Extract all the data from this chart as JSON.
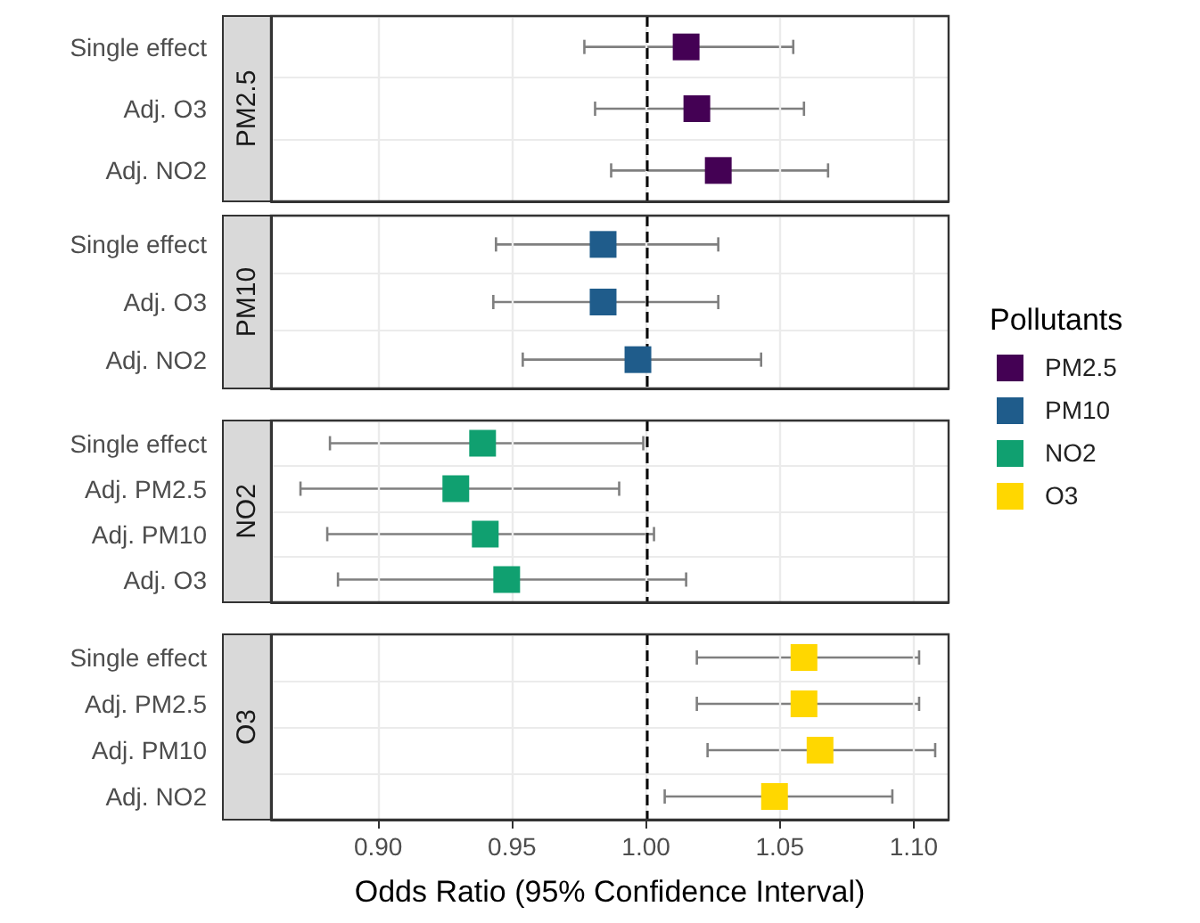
{
  "chart_data": [
    {
      "type": "scatter",
      "orientation": "horizontal",
      "title": "PM2.5",
      "categories": [
        "Single effect",
        "Adj. O3",
        "Adj. NO2"
      ],
      "series": [
        {
          "name": "PM2.5",
          "color": "#440154",
          "values": [
            1.015,
            1.019,
            1.027
          ],
          "errors": [
            [
              0.977,
              1.055
            ],
            [
              0.981,
              1.059
            ],
            [
              0.987,
              1.068
            ]
          ]
        }
      ],
      "xlim": [
        0.86,
        1.113
      ],
      "xticks": [
        0.9,
        0.95,
        1,
        1.05,
        1.1
      ],
      "grid": true,
      "marker": "square",
      "ref_lines": [
        {
          "axis": "x",
          "value": 1,
          "color": "#000000",
          "line_style": "dashed"
        }
      ],
      "legend": "right",
      "legend_title": "Pollutants",
      "tick_labels": "y"
    },
    {
      "type": "scatter",
      "orientation": "horizontal",
      "title": "PM10",
      "categories": [
        "Single effect",
        "Adj. O3",
        "Adj. NO2"
      ],
      "series": [
        {
          "name": "PM10",
          "color": "#1f5c8b",
          "values": [
            0.984,
            0.984,
            0.997
          ],
          "errors": [
            [
              0.944,
              1.027
            ],
            [
              0.943,
              1.027
            ],
            [
              0.954,
              1.043
            ]
          ]
        }
      ],
      "xlim": [
        0.86,
        1.113
      ],
      "xticks": [
        0.9,
        0.95,
        1,
        1.05,
        1.1
      ],
      "grid": true,
      "marker": "square",
      "ref_lines": [
        {
          "axis": "x",
          "value": 1,
          "color": "#000000",
          "line_style": "dashed"
        }
      ],
      "legend": "right",
      "tick_labels": "y"
    },
    {
      "type": "scatter",
      "orientation": "horizontal",
      "title": "NO2",
      "categories": [
        "Single effect",
        "Adj. PM2.5",
        "Adj. PM10",
        "Adj. O3"
      ],
      "series": [
        {
          "name": "NO2",
          "color": "#10a070",
          "values": [
            0.939,
            0.929,
            0.94,
            0.948
          ],
          "errors": [
            [
              0.882,
              0.999
            ],
            [
              0.871,
              0.99
            ],
            [
              0.881,
              1.003
            ],
            [
              0.885,
              1.015
            ]
          ]
        }
      ],
      "xlim": [
        0.86,
        1.113
      ],
      "xticks": [
        0.9,
        0.95,
        1,
        1.05,
        1.1
      ],
      "grid": true,
      "marker": "square",
      "ref_lines": [
        {
          "axis": "x",
          "value": 1,
          "color": "#000000",
          "line_style": "dashed"
        }
      ],
      "legend": "right",
      "tick_labels": "y"
    },
    {
      "type": "scatter",
      "orientation": "horizontal",
      "title": "O3",
      "xlabel": "Odds Ratio (95% Confidence Interval)",
      "categories": [
        "Single effect",
        "Adj. PM2.5",
        "Adj. PM10",
        "Adj. NO2"
      ],
      "series": [
        {
          "name": "O3",
          "color": "#ffd700",
          "values": [
            1.059,
            1.059,
            1.065,
            1.048
          ],
          "errors": [
            [
              1.019,
              1.102
            ],
            [
              1.019,
              1.102
            ],
            [
              1.023,
              1.108
            ],
            [
              1.007,
              1.092
            ]
          ]
        }
      ],
      "xlim": [
        0.86,
        1.113
      ],
      "xticks": [
        {
          "value": 0.9,
          "label": "0.90"
        },
        0.95,
        {
          "value": 1,
          "label": "1.00"
        },
        1.05,
        {
          "value": 1.1,
          "label": "1.10"
        }
      ],
      "grid": true,
      "marker": "square",
      "ref_lines": [
        {
          "axis": "x",
          "value": 1,
          "color": "#000000",
          "line_style": "dashed"
        }
      ],
      "legend": "right"
    }
  ]
}
